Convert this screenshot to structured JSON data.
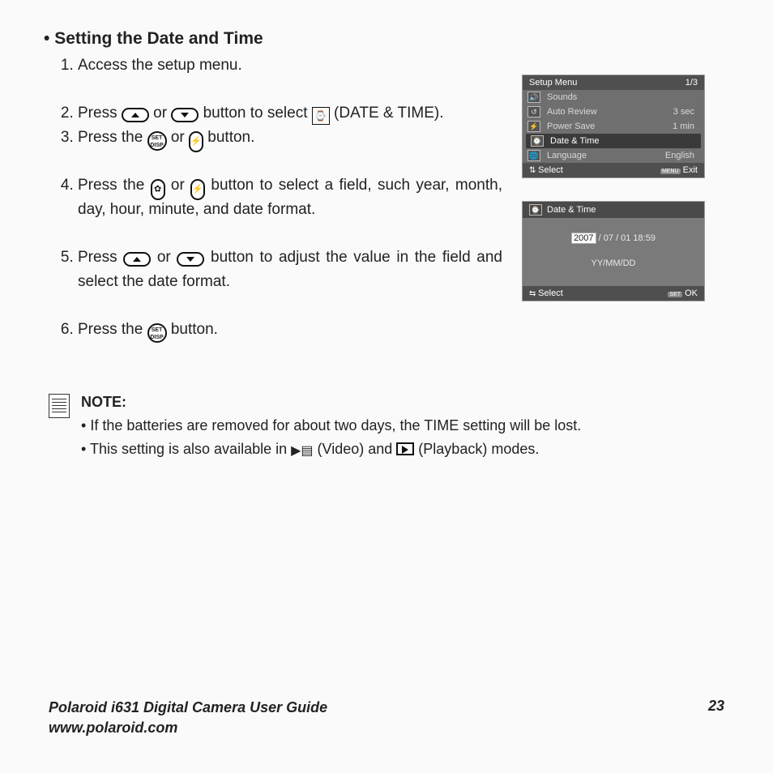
{
  "heading": "Setting the Date and Time",
  "steps": {
    "s1": "Access the setup menu.",
    "s2a": "Press ",
    "s2b": " or ",
    "s2c": " button to select ",
    "s2d": " (DATE & TIME).",
    "s3a": "Press the ",
    "s3b": " or ",
    "s3c": " button.",
    "s4a": "Press the ",
    "s4b": " or ",
    "s4c": " button to select a field, such year, month, day, hour, minute, and date format.",
    "s5a": "Press ",
    "s5b": " or ",
    "s5c": " button to adjust the value in the field and select the date format.",
    "s6a": "Press  the ",
    "s6b": " button."
  },
  "set_disp_top": "SET",
  "set_disp_bot": "DISP",
  "note": {
    "label": "NOTE:",
    "b1": "If the batteries are removed for about two days, the TIME setting will be lost.",
    "b2a": "This setting is also available in ",
    "b2b": " (Video) and ",
    "b2c": " (Playback) modes."
  },
  "lcd1": {
    "title": "Setup Menu",
    "page": "1/3",
    "rows": [
      {
        "icon": "🔊",
        "label": "Sounds",
        "val": ""
      },
      {
        "icon": "↺",
        "label": "Auto Review",
        "val": "3 sec"
      },
      {
        "icon": "⚡",
        "label": "Power Save",
        "val": "1 min"
      },
      {
        "icon": "⌚",
        "label": "Date & Time",
        "val": ""
      },
      {
        "icon": "🌐",
        "label": "Language",
        "val": "English"
      }
    ],
    "footer_left": "Select",
    "footer_right": "Exit",
    "footer_right_btn": "MENU"
  },
  "lcd2": {
    "title": "Date & Time",
    "year": "2007",
    "rest": " / 07 / 01   18:59",
    "format": "YY/MM/DD",
    "footer_left": "Select",
    "footer_right": "OK",
    "footer_right_btn": "SET"
  },
  "footer": {
    "line1": "Polaroid i631 Digital Camera User Guide",
    "line2": "www.polaroid.com",
    "page": "23"
  },
  "colors": {
    "lcd_bg": "#6f6f6f",
    "lcd_header": "#4f4f4f",
    "lcd_sel": "#3a3a3a",
    "page_bg": "#fafafa"
  }
}
